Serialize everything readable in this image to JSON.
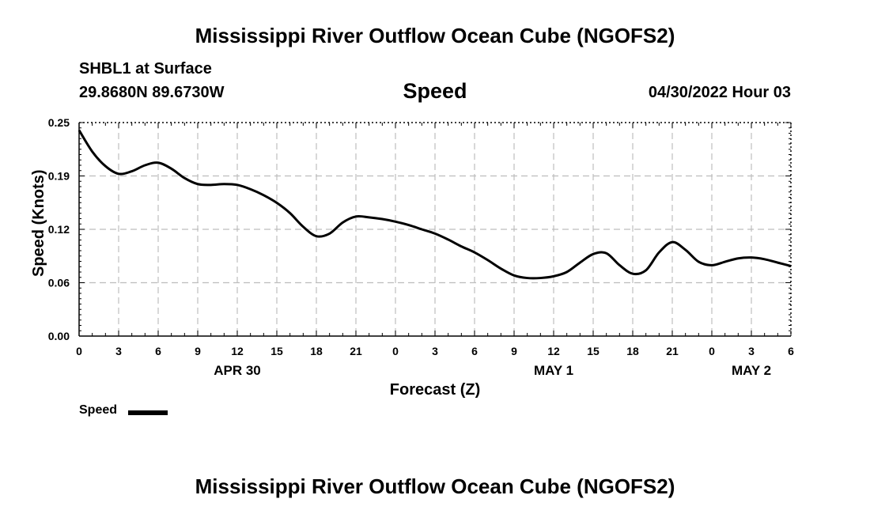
{
  "header": {
    "title": "Mississippi River Outflow Ocean Cube (NGOFS2)",
    "station": "SHBL1 at Surface",
    "coords": "29.8680N  89.6730W",
    "variable": "Speed",
    "datetime": "04/30/2022 Hour 03"
  },
  "footer": {
    "title": "Mississippi River Outflow Ocean Cube (NGOFS2)"
  },
  "legend": {
    "label": "Speed",
    "color": "#000000"
  },
  "chart_data": {
    "type": "line",
    "title": "Speed",
    "xlabel": "Forecast (Z)",
    "ylabel": "Speed (Knots)",
    "xlim": [
      0,
      54
    ],
    "ylim": [
      0,
      0.25
    ],
    "grid": true,
    "x_ticks": [
      0,
      3,
      6,
      9,
      12,
      15,
      18,
      21,
      24,
      27,
      30,
      33,
      36,
      39,
      42,
      45,
      48,
      51,
      54
    ],
    "x_tick_labels": [
      "0",
      "3",
      "6",
      "9",
      "12",
      "15",
      "18",
      "21",
      "0",
      "3",
      "6",
      "9",
      "12",
      "15",
      "18",
      "21",
      "0",
      "3",
      "6"
    ],
    "y_ticks": [
      0.0,
      0.0625,
      0.125,
      0.1875,
      0.25
    ],
    "y_tick_labels": [
      "0.00",
      "0.06",
      "0.12",
      "0.19",
      "0.25"
    ],
    "date_labels": [
      {
        "x": 12,
        "label": "APR 30"
      },
      {
        "x": 36,
        "label": "MAY 1"
      },
      {
        "x": 51,
        "label": "MAY 2"
      }
    ],
    "series": [
      {
        "name": "Speed",
        "color": "#000000",
        "x": [
          0,
          1,
          2,
          3,
          4,
          5,
          6,
          7,
          8,
          9,
          10,
          11,
          12,
          13,
          14,
          15,
          16,
          17,
          18,
          19,
          20,
          21,
          22,
          23,
          24,
          25,
          26,
          27,
          28,
          29,
          30,
          31,
          32,
          33,
          34,
          35,
          36,
          37,
          38,
          39,
          40,
          41,
          42,
          43,
          44,
          45,
          46,
          47,
          48,
          49,
          50,
          51,
          52,
          53,
          54
        ],
        "y": [
          0.241,
          0.216,
          0.199,
          0.19,
          0.193,
          0.2,
          0.203,
          0.196,
          0.185,
          0.178,
          0.177,
          0.178,
          0.177,
          0.172,
          0.165,
          0.156,
          0.144,
          0.128,
          0.117,
          0.12,
          0.133,
          0.14,
          0.139,
          0.137,
          0.134,
          0.13,
          0.125,
          0.12,
          0.113,
          0.105,
          0.098,
          0.089,
          0.079,
          0.071,
          0.068,
          0.068,
          0.07,
          0.075,
          0.086,
          0.096,
          0.097,
          0.083,
          0.073,
          0.077,
          0.098,
          0.11,
          0.101,
          0.087,
          0.083,
          0.087,
          0.091,
          0.092,
          0.09,
          0.086,
          0.082
        ]
      }
    ]
  }
}
